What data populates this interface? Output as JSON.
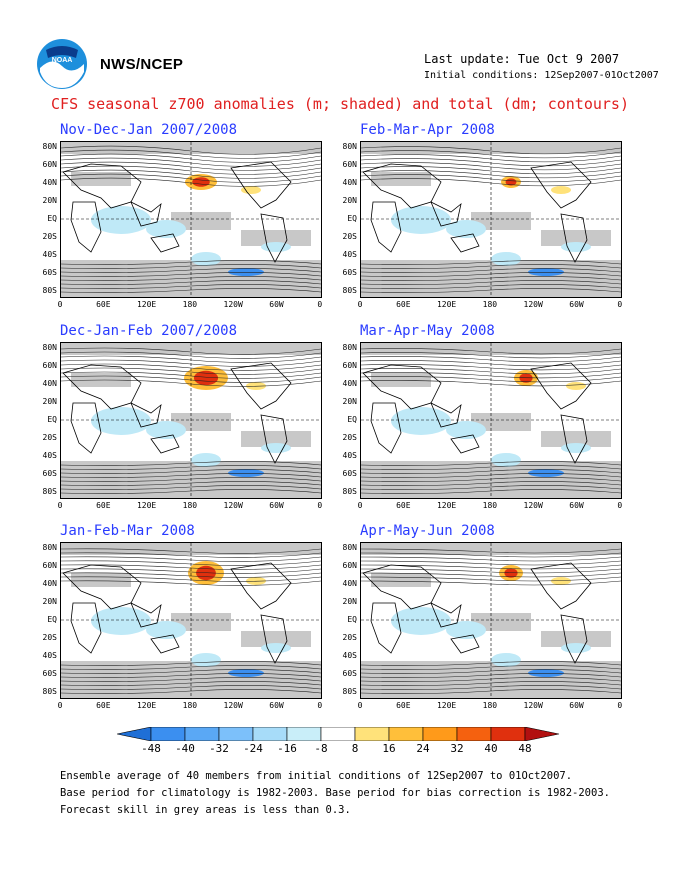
{
  "header": {
    "org": "NWS/NCEP",
    "logo_text": "NOAA",
    "last_update": "Last update: Tue Oct  9 2007",
    "initial_conditions": "Initial conditions: 12Sep2007-01Oct2007",
    "title": "CFS seasonal z700 anomalies (m; shaded) and total (dm; contours)"
  },
  "panels": [
    {
      "title": "Nov-Dec-Jan 2007/2008"
    },
    {
      "title": "Feb-Mar-Apr 2008"
    },
    {
      "title": "Dec-Jan-Feb 2007/2008"
    },
    {
      "title": "Mar-Apr-May 2008"
    },
    {
      "title": "Jan-Feb-Mar 2008"
    },
    {
      "title": "Apr-May-Jun 2008"
    }
  ],
  "axes": {
    "lat_labels": [
      "80N",
      "60N",
      "40N",
      "20N",
      "EQ",
      "20S",
      "40S",
      "60S",
      "80S"
    ],
    "lon_labels": [
      "0",
      "60E",
      "120E",
      "180",
      "120W",
      "60W",
      "0"
    ]
  },
  "colorbar": {
    "labels": [
      "-48",
      "-40",
      "-32",
      "-24",
      "-16",
      "-8",
      "8",
      "16",
      "24",
      "32",
      "40",
      "48"
    ],
    "colors": [
      "#1f6fd6",
      "#3b8ff0",
      "#5aa8f5",
      "#7cc0fa",
      "#a7dcf9",
      "#c9eef9",
      "#ffffff",
      "#ffe27a",
      "#ffbf3a",
      "#ff9a1a",
      "#f5610f",
      "#e0300e",
      "#b21010"
    ]
  },
  "footer": {
    "line1": "Ensemble average of 40 members from initial conditions of 12Sep2007 to 01Oct2007.",
    "line2": "Base period for climatology is 1982-2003. Base period for bias correction is 1982-2003.",
    "line3": "Forecast skill in grey areas is less than 0.3."
  }
}
